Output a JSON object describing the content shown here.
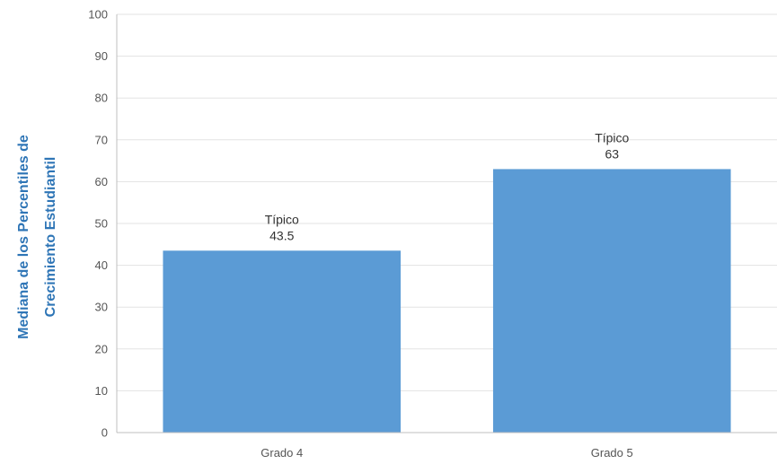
{
  "chart_data": {
    "type": "bar",
    "categories": [
      "Grado 4",
      "Grado 5"
    ],
    "values": [
      43.5,
      63
    ],
    "data_labels": [
      {
        "category": "Típico",
        "value": "43.5"
      },
      {
        "category": "Típico",
        "value": "63"
      }
    ],
    "title": "",
    "xlabel": "",
    "ylabel_lines": [
      "Mediana de los Percentiles de",
      "Crecimiento Estudiantil"
    ],
    "ylim": [
      0,
      100
    ],
    "yticks": [
      0,
      10,
      20,
      30,
      40,
      50,
      60,
      70,
      80,
      90,
      100
    ],
    "grid": true,
    "legend": "none",
    "colors": {
      "bar": "#5b9bd5",
      "axis_title": "#2e75b6",
      "grid": "#e3e3e3",
      "axis": "#bfbfbf"
    }
  }
}
